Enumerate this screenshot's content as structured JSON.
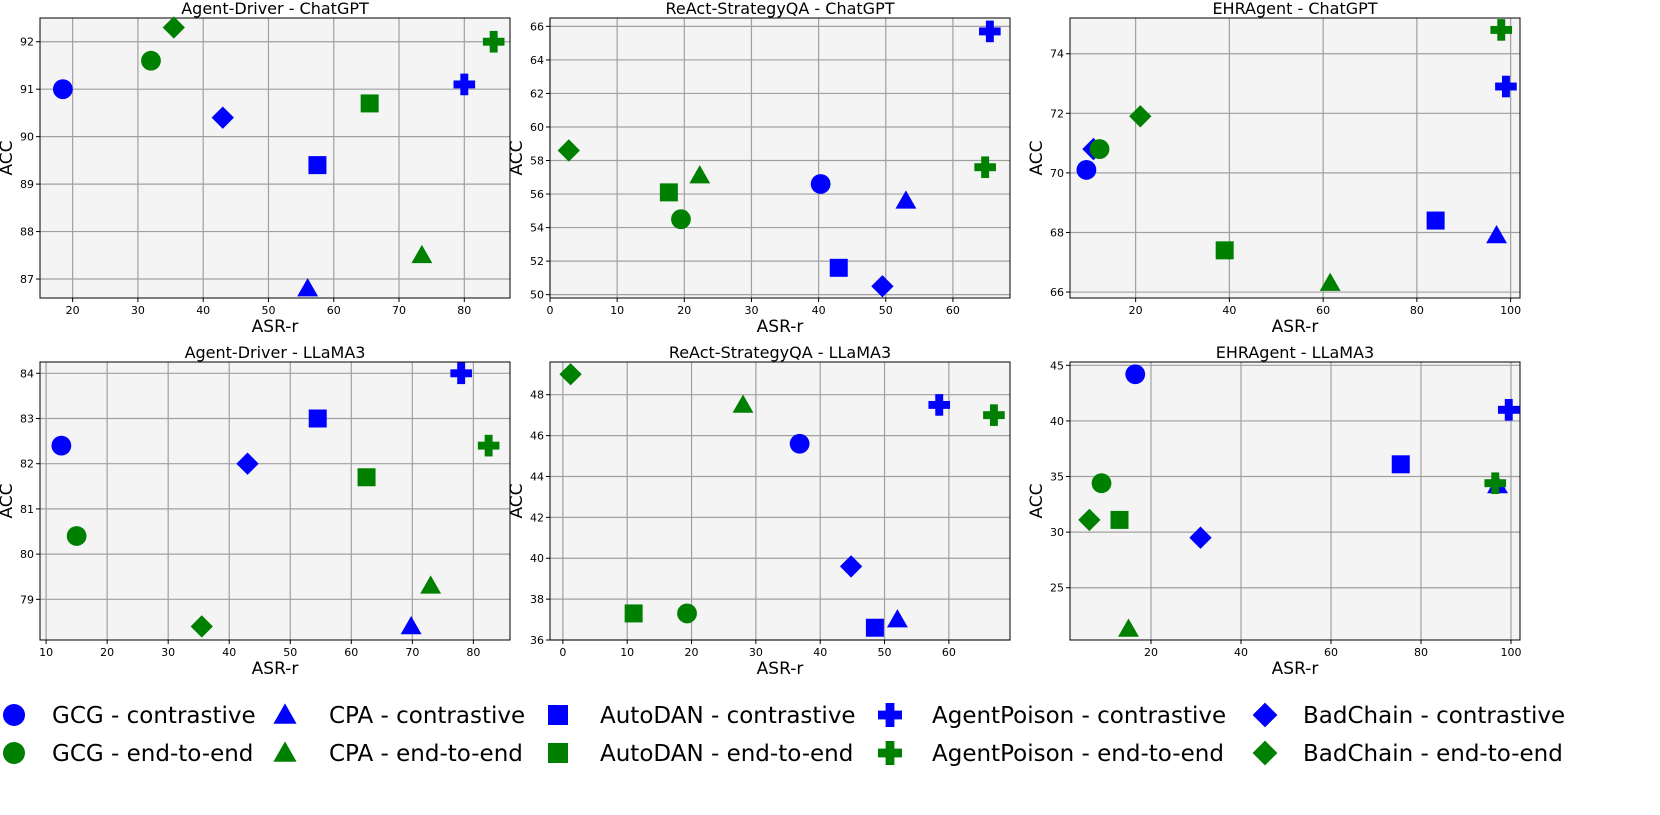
{
  "legend": {
    "location": "bottom",
    "entries": [
      {
        "label": "GCG - contrastive",
        "marker": "circle",
        "color": "#0000ff"
      },
      {
        "label": "CPA - contrastive",
        "marker": "triangle",
        "color": "#0000ff"
      },
      {
        "label": "AutoDAN - contrastive",
        "marker": "square",
        "color": "#0000ff"
      },
      {
        "label": "AgentPoison - contrastive",
        "marker": "plus",
        "color": "#0000ff"
      },
      {
        "label": "BadChain - contrastive",
        "marker": "diamond",
        "color": "#0000ff"
      },
      {
        "label": "GCG - end-to-end",
        "marker": "circle",
        "color": "#008000"
      },
      {
        "label": "CPA - end-to-end",
        "marker": "triangle",
        "color": "#008000"
      },
      {
        "label": "AutoDAN - end-to-end",
        "marker": "square",
        "color": "#008000"
      },
      {
        "label": "AgentPoison - end-to-end",
        "marker": "plus",
        "color": "#008000"
      },
      {
        "label": "BadChain - end-to-end",
        "marker": "diamond",
        "color": "#008000"
      }
    ]
  },
  "chart_data": [
    {
      "type": "scatter",
      "title": "Agent-Driver - ChatGPT",
      "xlabel": "ASR-r",
      "ylabel": "ACC",
      "xlim": [
        15,
        87
      ],
      "ylim": [
        86.6,
        92.5
      ],
      "xticks": [
        20,
        30,
        40,
        50,
        60,
        70,
        80
      ],
      "yticks": [
        87,
        88,
        89,
        90,
        91,
        92
      ],
      "grid": true,
      "points": [
        {
          "series": "GCG - contrastive",
          "x": 18.5,
          "y": 91.0
        },
        {
          "series": "CPA - contrastive",
          "x": 56.0,
          "y": 86.8
        },
        {
          "series": "AutoDAN - contrastive",
          "x": 57.5,
          "y": 89.4
        },
        {
          "series": "AgentPoison - contrastive",
          "x": 80.0,
          "y": 91.1
        },
        {
          "series": "BadChain - contrastive",
          "x": 43.0,
          "y": 90.4
        },
        {
          "series": "GCG - end-to-end",
          "x": 32.0,
          "y": 91.6
        },
        {
          "series": "CPA - end-to-end",
          "x": 73.5,
          "y": 87.5
        },
        {
          "series": "AutoDAN - end-to-end",
          "x": 65.5,
          "y": 90.7
        },
        {
          "series": "AgentPoison - end-to-end",
          "x": 84.5,
          "y": 92.0
        },
        {
          "series": "BadChain - end-to-end",
          "x": 35.5,
          "y": 92.3
        }
      ]
    },
    {
      "type": "scatter",
      "title": "ReAct-StrategyQA - ChatGPT",
      "xlabel": "ASR-r",
      "ylabel": "ACC",
      "xlim": [
        0,
        68.5
      ],
      "ylim": [
        49.8,
        66.5
      ],
      "xticks": [
        0,
        10,
        20,
        30,
        40,
        50,
        60
      ],
      "yticks": [
        50,
        52,
        54,
        56,
        58,
        60,
        62,
        64,
        66
      ],
      "grid": true,
      "points": [
        {
          "series": "GCG - contrastive",
          "x": 40.3,
          "y": 56.6
        },
        {
          "series": "CPA - contrastive",
          "x": 53.0,
          "y": 55.6
        },
        {
          "series": "AutoDAN - contrastive",
          "x": 43.0,
          "y": 51.6
        },
        {
          "series": "AgentPoison - contrastive",
          "x": 65.5,
          "y": 65.7
        },
        {
          "series": "BadChain - contrastive",
          "x": 49.5,
          "y": 50.5
        },
        {
          "series": "GCG - end-to-end",
          "x": 19.5,
          "y": 54.5
        },
        {
          "series": "CPA - end-to-end",
          "x": 22.3,
          "y": 57.1
        },
        {
          "series": "AutoDAN - end-to-end",
          "x": 17.7,
          "y": 56.1
        },
        {
          "series": "AgentPoison - end-to-end",
          "x": 64.8,
          "y": 57.6
        },
        {
          "series": "BadChain - end-to-end",
          "x": 2.8,
          "y": 58.6
        }
      ]
    },
    {
      "type": "scatter",
      "title": "EHRAgent - ChatGPT",
      "xlabel": "ASR-r",
      "ylabel": "ACC",
      "xlim": [
        6,
        102
      ],
      "ylim": [
        65.8,
        75.2
      ],
      "xticks": [
        20,
        40,
        60,
        80,
        100
      ],
      "yticks": [
        66,
        68,
        70,
        72,
        74
      ],
      "grid": true,
      "points": [
        {
          "series": "GCG - contrastive",
          "x": 9.5,
          "y": 70.1
        },
        {
          "series": "CPA - contrastive",
          "x": 97.0,
          "y": 67.9
        },
        {
          "series": "AutoDAN - contrastive",
          "x": 84.0,
          "y": 68.4
        },
        {
          "series": "AgentPoison - contrastive",
          "x": 99.0,
          "y": 72.9
        },
        {
          "series": "BadChain - contrastive",
          "x": 11.0,
          "y": 70.8
        },
        {
          "series": "GCG - end-to-end",
          "x": 12.3,
          "y": 70.8
        },
        {
          "series": "CPA - end-to-end",
          "x": 61.5,
          "y": 66.3
        },
        {
          "series": "AutoDAN - end-to-end",
          "x": 39.0,
          "y": 67.4
        },
        {
          "series": "AgentPoison - end-to-end",
          "x": 98.0,
          "y": 74.8
        },
        {
          "series": "BadChain - end-to-end",
          "x": 21.0,
          "y": 71.9
        }
      ]
    },
    {
      "type": "scatter",
      "title": "Agent-Driver - LLaMA3",
      "xlabel": "ASR-r",
      "ylabel": "ACC",
      "xlim": [
        9,
        86
      ],
      "ylim": [
        78.1,
        84.25
      ],
      "xticks": [
        10,
        20,
        30,
        40,
        50,
        60,
        70,
        80
      ],
      "yticks": [
        79,
        80,
        81,
        82,
        83,
        84
      ],
      "grid": true,
      "points": [
        {
          "series": "GCG - contrastive",
          "x": 12.5,
          "y": 82.4
        },
        {
          "series": "CPA - contrastive",
          "x": 69.8,
          "y": 78.4
        },
        {
          "series": "AutoDAN - contrastive",
          "x": 54.5,
          "y": 83.0
        },
        {
          "series": "AgentPoison - contrastive",
          "x": 78.0,
          "y": 84.0
        },
        {
          "series": "BadChain - contrastive",
          "x": 43.0,
          "y": 82.0
        },
        {
          "series": "GCG - end-to-end",
          "x": 15.0,
          "y": 80.4
        },
        {
          "series": "CPA - end-to-end",
          "x": 73.0,
          "y": 79.3
        },
        {
          "series": "AutoDAN - end-to-end",
          "x": 62.5,
          "y": 81.7
        },
        {
          "series": "AgentPoison - end-to-end",
          "x": 82.5,
          "y": 82.4
        },
        {
          "series": "BadChain - end-to-end",
          "x": 35.5,
          "y": 78.4
        }
      ]
    },
    {
      "type": "scatter",
      "title": "ReAct-StrategyQA - LLaMA3",
      "xlabel": "ASR-r",
      "ylabel": "ACC",
      "xlim": [
        -2,
        69.5
      ],
      "ylim": [
        36,
        49.6
      ],
      "xticks": [
        0,
        10,
        20,
        30,
        40,
        50,
        60
      ],
      "yticks": [
        36,
        38,
        40,
        42,
        44,
        46,
        48
      ],
      "grid": true,
      "points": [
        {
          "series": "GCG - contrastive",
          "x": 36.8,
          "y": 45.6
        },
        {
          "series": "CPA - contrastive",
          "x": 52.0,
          "y": 37.0
        },
        {
          "series": "AutoDAN - contrastive",
          "x": 48.5,
          "y": 36.6
        },
        {
          "series": "AgentPoison - contrastive",
          "x": 58.5,
          "y": 47.5
        },
        {
          "series": "BadChain - contrastive",
          "x": 44.8,
          "y": 39.6
        },
        {
          "series": "GCG - end-to-end",
          "x": 19.3,
          "y": 37.3
        },
        {
          "series": "CPA - end-to-end",
          "x": 28.0,
          "y": 47.5
        },
        {
          "series": "AutoDAN - end-to-end",
          "x": 11.0,
          "y": 37.3
        },
        {
          "series": "AgentPoison - end-to-end",
          "x": 67.0,
          "y": 47.0
        },
        {
          "series": "BadChain - end-to-end",
          "x": 1.2,
          "y": 49.0
        }
      ]
    },
    {
      "type": "scatter",
      "title": "EHRAgent - LLaMA3",
      "xlabel": "ASR-r",
      "ylabel": "ACC",
      "xlim": [
        2,
        102
      ],
      "ylim": [
        20.3,
        45.3
      ],
      "xticks": [
        20,
        40,
        60,
        80,
        100
      ],
      "yticks": [
        25,
        30,
        35,
        40,
        45
      ],
      "grid": true,
      "points": [
        {
          "series": "GCG - contrastive",
          "x": 16.5,
          "y": 44.2
        },
        {
          "series": "CPA - contrastive",
          "x": 97.0,
          "y": 34.2
        },
        {
          "series": "AutoDAN - contrastive",
          "x": 75.5,
          "y": 36.1
        },
        {
          "series": "AgentPoison - contrastive",
          "x": 99.5,
          "y": 41.0
        },
        {
          "series": "BadChain - contrastive",
          "x": 31.0,
          "y": 29.5
        },
        {
          "series": "GCG - end-to-end",
          "x": 9.0,
          "y": 34.4
        },
        {
          "series": "CPA - end-to-end",
          "x": 15.0,
          "y": 21.3
        },
        {
          "series": "AutoDAN - end-to-end",
          "x": 13.0,
          "y": 31.1
        },
        {
          "series": "AgentPoison - end-to-end",
          "x": 96.5,
          "y": 34.4
        },
        {
          "series": "BadChain - end-to-end",
          "x": 6.3,
          "y": 31.1
        }
      ]
    }
  ]
}
